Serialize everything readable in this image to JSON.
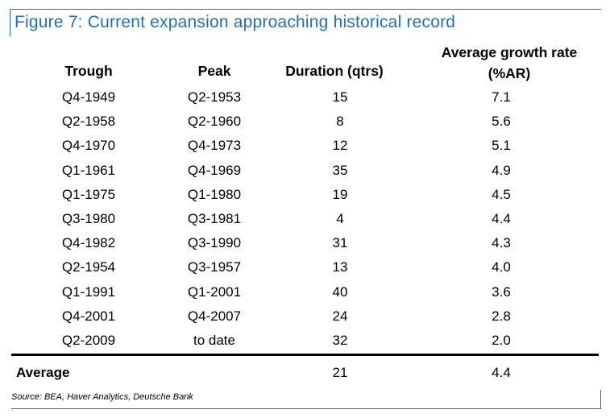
{
  "title": "Figure 7: Current expansion approaching historical record",
  "colors": {
    "accent": "#1f6fc0",
    "text": "#000000",
    "background": "#ffffff"
  },
  "table": {
    "headers": {
      "trough": "Trough",
      "peak": "Peak",
      "duration": "Duration (qtrs)",
      "growth_line1": "Average growth rate",
      "growth_line2": "(%AR)"
    },
    "rows": [
      {
        "trough": "Q4-1949",
        "peak": "Q2-1953",
        "duration": "15",
        "growth": "7.1"
      },
      {
        "trough": "Q2-1958",
        "peak": "Q2-1960",
        "duration": "8",
        "growth": "5.6"
      },
      {
        "trough": "Q4-1970",
        "peak": "Q4-1973",
        "duration": "12",
        "growth": "5.1"
      },
      {
        "trough": "Q1-1961",
        "peak": "Q4-1969",
        "duration": "35",
        "growth": "4.9"
      },
      {
        "trough": "Q1-1975",
        "peak": "Q1-1980",
        "duration": "19",
        "growth": "4.5"
      },
      {
        "trough": "Q3-1980",
        "peak": "Q3-1981",
        "duration": "4",
        "growth": "4.4"
      },
      {
        "trough": "Q4-1982",
        "peak": "Q3-1990",
        "duration": "31",
        "growth": "4.3"
      },
      {
        "trough": "Q2-1954",
        "peak": "Q3-1957",
        "duration": "13",
        "growth": "4.0"
      },
      {
        "trough": "Q1-1991",
        "peak": "Q1-2001",
        "duration": "40",
        "growth": "3.6"
      },
      {
        "trough": "Q4-2001",
        "peak": "Q4-2007",
        "duration": "24",
        "growth": "2.8"
      },
      {
        "trough": "Q2-2009",
        "peak": "to date",
        "duration": "32",
        "growth": "2.0"
      }
    ],
    "average": {
      "label": "Average",
      "duration": "21",
      "growth": "4.4"
    }
  },
  "source": "Source: BEA, Haver Analytics, Deutsche Bank"
}
